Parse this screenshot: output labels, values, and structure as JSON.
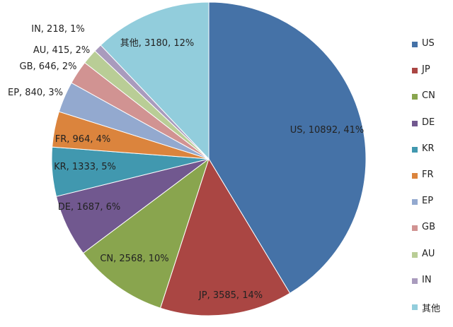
{
  "chart_data": {
    "type": "pie",
    "slices": [
      {
        "name": "US",
        "value": 10892,
        "percent": "41%",
        "label": "US, 10892, 41%",
        "color": "#4572A7"
      },
      {
        "name": "JP",
        "value": 3585,
        "percent": "14%",
        "label": "JP, 3585, 14%",
        "color": "#AA4643"
      },
      {
        "name": "CN",
        "value": 2568,
        "percent": "10%",
        "label": "CN, 2568, 10%",
        "color": "#89A54E"
      },
      {
        "name": "DE",
        "value": 1687,
        "percent": "6%",
        "label": "DE, 1687, 6%",
        "color": "#71588F"
      },
      {
        "name": "KR",
        "value": 1333,
        "percent": "5%",
        "label": "KR, 1333, 5%",
        "color": "#4198AF"
      },
      {
        "name": "FR",
        "value": 964,
        "percent": "4%",
        "label": "FR, 964, 4%",
        "color": "#DB843D"
      },
      {
        "name": "EP",
        "value": 840,
        "percent": "3%",
        "label": "EP, 840, 3%",
        "color": "#93A9CF"
      },
      {
        "name": "GB",
        "value": 646,
        "percent": "2%",
        "label": "GB, 646, 2%",
        "color": "#D19392"
      },
      {
        "name": "AU",
        "value": 415,
        "percent": "2%",
        "label": "AU, 415, 2%",
        "color": "#B9CD96"
      },
      {
        "name": "IN",
        "value": 218,
        "percent": "1%",
        "label": "IN, 218, 1%",
        "color": "#A99BBD"
      },
      {
        "name": "其他",
        "value": 3180,
        "percent": "12%",
        "label": "其他, 3180, 12%",
        "color": "#92CDDC"
      }
    ],
    "legend": {
      "position": "right",
      "items": [
        "US",
        "JP",
        "CN",
        "DE",
        "KR",
        "FR",
        "EP",
        "GB",
        "AU",
        "IN",
        "其他"
      ]
    },
    "start_angle": "12 o'clock",
    "direction": "clockwise"
  }
}
